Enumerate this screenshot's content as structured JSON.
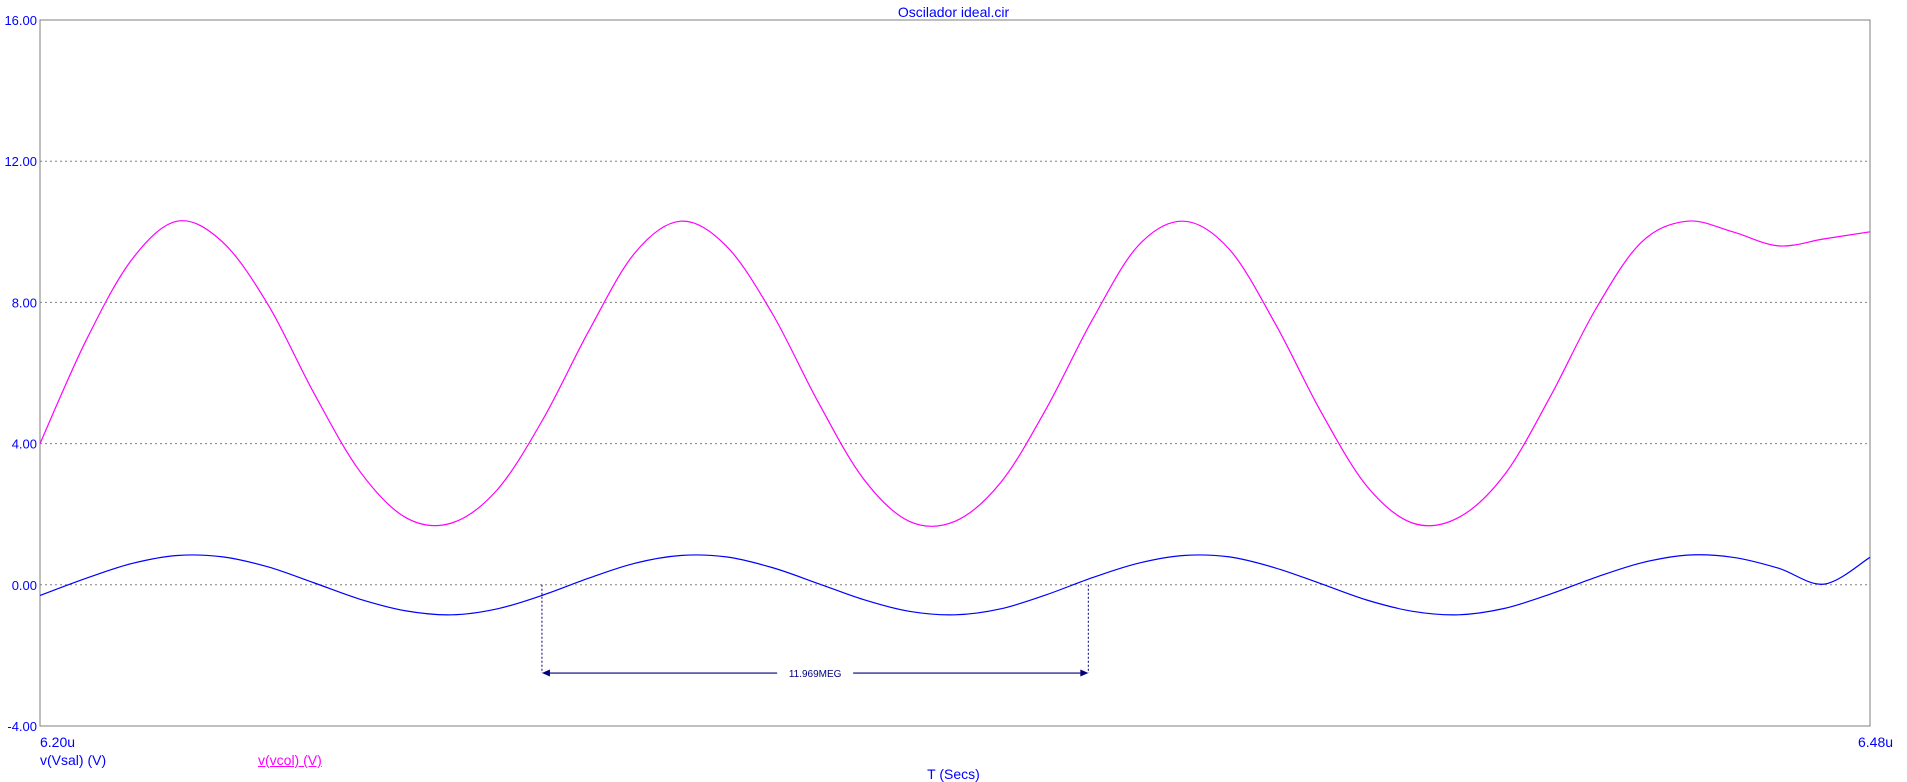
{
  "chart_data": {
    "type": "line",
    "title": "Oscilador ideal.cir",
    "xlabel": "T (Secs)",
    "x_range_labels": [
      "6.20u",
      "6.48u"
    ],
    "xlim": [
      6.2,
      6.48
    ],
    "ylim": [
      -4.0,
      16.0
    ],
    "yticks": [
      -4.0,
      0.0,
      4.0,
      8.0,
      12.0,
      16.0
    ],
    "ytick_labels": [
      "-4.00",
      "0.00",
      "4.00",
      "8.00",
      "12.00",
      "16.00"
    ],
    "grid": "horizontal dotted",
    "series": [
      {
        "name": "v(Vsal) (V)",
        "color": "#0000ff",
        "x": [
          6.2,
          6.207,
          6.214,
          6.221,
          6.228,
          6.235,
          6.242,
          6.249,
          6.256,
          6.263,
          6.27,
          6.277,
          6.284,
          6.291,
          6.298,
          6.305,
          6.312,
          6.319,
          6.326,
          6.333,
          6.34,
          6.347,
          6.354,
          6.361,
          6.368,
          6.375,
          6.382,
          6.389,
          6.396,
          6.403,
          6.41,
          6.417,
          6.424,
          6.431,
          6.438,
          6.445,
          6.452,
          6.459,
          6.466,
          6.473,
          6.48
        ],
        "values": [
          -0.3,
          0.18,
          0.6,
          0.83,
          0.79,
          0.5,
          0.05,
          -0.41,
          -0.74,
          -0.85,
          -0.68,
          -0.29,
          0.19,
          0.61,
          0.83,
          0.79,
          0.49,
          0.04,
          -0.42,
          -0.75,
          -0.85,
          -0.68,
          -0.28,
          0.2,
          0.61,
          0.83,
          0.79,
          0.48,
          0.03,
          -0.43,
          -0.75,
          -0.85,
          -0.67,
          -0.27,
          0.21,
          0.62,
          0.84,
          0.78,
          0.47,
          0.02,
          0.78
        ]
      },
      {
        "name": "v(vcol) (V)",
        "color": "#ff00ff",
        "x": [
          6.2,
          6.207,
          6.214,
          6.221,
          6.228,
          6.235,
          6.242,
          6.249,
          6.256,
          6.263,
          6.27,
          6.277,
          6.284,
          6.291,
          6.298,
          6.305,
          6.312,
          6.319,
          6.326,
          6.333,
          6.34,
          6.347,
          6.354,
          6.361,
          6.368,
          6.375,
          6.382,
          6.389,
          6.396,
          6.403,
          6.41,
          6.417,
          6.424,
          6.431,
          6.438,
          6.445,
          6.452,
          6.459,
          6.466,
          6.473,
          6.48
        ],
        "values": [
          4.0,
          6.9,
          9.2,
          10.3,
          9.7,
          7.9,
          5.4,
          3.2,
          1.9,
          1.75,
          2.7,
          4.7,
          7.2,
          9.4,
          10.3,
          9.6,
          7.7,
          5.2,
          3.0,
          1.8,
          1.8,
          2.9,
          5.0,
          7.5,
          9.6,
          10.3,
          9.5,
          7.4,
          4.9,
          2.8,
          1.75,
          1.9,
          3.1,
          5.3,
          7.8,
          9.7,
          10.3,
          10.0,
          9.6,
          9.8,
          10.0
        ]
      }
    ],
    "annotation": {
      "label": "11.969MEG",
      "x_start": 6.2768,
      "x_end": 6.3604,
      "y": -2.5,
      "color": "#000080"
    }
  }
}
